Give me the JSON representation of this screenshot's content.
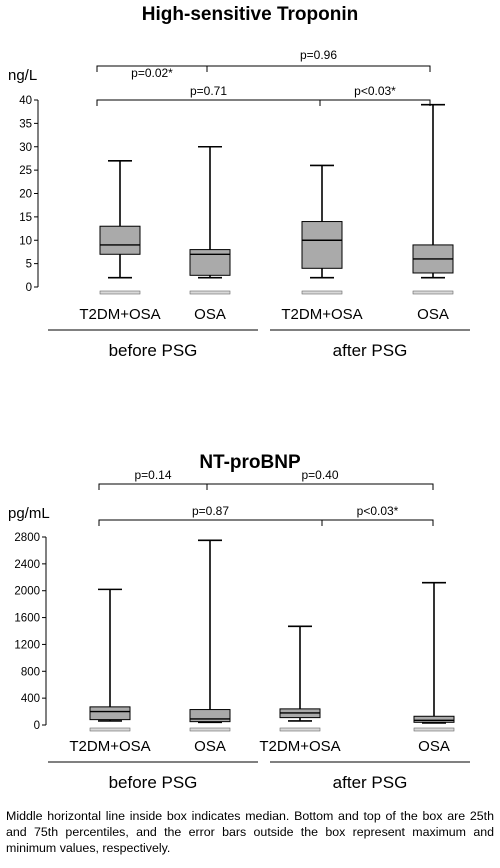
{
  "chart_data": [
    {
      "type": "box",
      "title": "High-sensitive Troponin",
      "ylabel": "ng/L",
      "ylim": [
        0,
        40
      ],
      "yticks": [
        "0",
        "5",
        "10",
        "15",
        "20",
        "25",
        "30",
        "35",
        "40"
      ],
      "categories": [
        "T2DM+OSA",
        "OSA",
        "T2DM+OSA",
        "OSA"
      ],
      "groups": [
        "before PSG",
        "after PSG"
      ],
      "boxes": [
        {
          "min": 2,
          "q1": 7,
          "median": 9,
          "q3": 13,
          "max": 27
        },
        {
          "min": 2,
          "q1": 2.5,
          "median": 7,
          "q3": 8,
          "max": 30
        },
        {
          "min": 2,
          "q1": 4,
          "median": 10,
          "q3": 14,
          "max": 26
        },
        {
          "min": 2,
          "q1": 3,
          "median": 6,
          "q3": 9,
          "max": 39
        }
      ],
      "comparisons": [
        {
          "from": 0,
          "to": 1,
          "label": "p=0.02*"
        },
        {
          "from": 1,
          "to": 3,
          "label": "p=0.96"
        },
        {
          "from": 0,
          "to": 2,
          "label": "p=0.71"
        },
        {
          "from": 2,
          "to": 3,
          "label": "p<0.03*"
        }
      ]
    },
    {
      "type": "box",
      "title": "NT-proBNP",
      "ylabel": "pg/mL",
      "ylim": [
        0,
        2800
      ],
      "yticks": [
        "0",
        "400",
        "800",
        "1200",
        "1600",
        "2000",
        "2400",
        "2800"
      ],
      "categories": [
        "T2DM+OSA",
        "OSA",
        "T2DM+OSA",
        "OSA"
      ],
      "groups": [
        "before PSG",
        "after PSG"
      ],
      "boxes": [
        {
          "min": 60,
          "q1": 80,
          "median": 200,
          "q3": 270,
          "max": 2020
        },
        {
          "min": 40,
          "q1": 50,
          "median": 90,
          "q3": 230,
          "max": 2750
        },
        {
          "min": 60,
          "q1": 110,
          "median": 180,
          "q3": 240,
          "max": 1470
        },
        {
          "min": 30,
          "q1": 40,
          "median": 70,
          "q3": 130,
          "max": 2120
        }
      ],
      "comparisons": [
        {
          "from": 0,
          "to": 1,
          "label": "p=0.14"
        },
        {
          "from": 1,
          "to": 3,
          "label": "p=0.40"
        },
        {
          "from": 0,
          "to": 2,
          "label": "p=0.87"
        },
        {
          "from": 2,
          "to": 3,
          "label": "p<0.03*"
        }
      ]
    }
  ],
  "caption": "Middle horizontal line inside box indicates median. Bottom and top of the box are 25th and 75th percentiles, and the error bars outside the box represent maximum and minimum values, respectively.",
  "colors": {
    "box_fill": "#aaaaaa",
    "stroke": "#000000"
  }
}
